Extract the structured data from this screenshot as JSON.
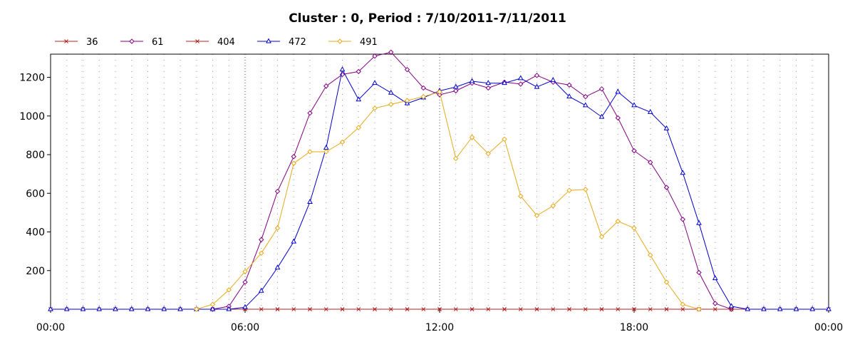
{
  "chart_data": {
    "type": "line",
    "title": "Cluster : 0, Period : 7/10/2011-7/11/2011",
    "xlabel": "",
    "ylabel": "",
    "x_tick_labels": [
      "00:00",
      "06:00",
      "12:00",
      "18:00",
      "00:00"
    ],
    "x_ticks_hours": [
      0,
      6,
      12,
      18,
      24
    ],
    "xlim_hours": [
      0,
      24
    ],
    "y_ticks": [
      200,
      400,
      600,
      800,
      1000,
      1200
    ],
    "ylim": [
      0,
      1320
    ],
    "grid": "dotted vertical lines every 30 minutes; stronger dotted lines at 6-hour marks",
    "legend_position": "top-left",
    "series": [
      {
        "name": "36",
        "color": "#b22222",
        "marker": "x",
        "x": [
          0,
          0.5,
          1,
          1.5,
          2,
          2.5,
          3,
          3.5,
          4,
          4.5,
          5,
          5.5,
          6,
          6.5,
          7,
          7.5,
          8,
          8.5,
          9,
          9.5,
          10,
          10.5,
          11,
          11.5,
          12,
          12.5,
          13,
          13.5,
          14,
          14.5,
          15,
          15.5,
          16,
          16.5,
          17,
          17.5,
          18,
          18.5,
          19,
          19.5,
          20,
          20.5,
          21,
          21.5,
          22,
          22.5,
          23,
          23.5,
          24
        ],
        "y": [
          0,
          0,
          0,
          0,
          0,
          0,
          0,
          0,
          0,
          0,
          0,
          0,
          0,
          0,
          0,
          0,
          0,
          0,
          0,
          0,
          0,
          0,
          0,
          0,
          0,
          0,
          0,
          0,
          0,
          0,
          0,
          0,
          0,
          0,
          0,
          0,
          0,
          0,
          0,
          0,
          0,
          0,
          0,
          0,
          0,
          0,
          0,
          0,
          0
        ]
      },
      {
        "name": "61",
        "color": "#800080",
        "marker": "diamond",
        "x": [
          5,
          5.5,
          6,
          6.5,
          7,
          7.5,
          8,
          8.5,
          9,
          9.5,
          10,
          10.5,
          11,
          11.5,
          12,
          12.5,
          13,
          13.5,
          14,
          14.5,
          15,
          15.5,
          16,
          16.5,
          17,
          17.5,
          18,
          18.5,
          19,
          19.5,
          20,
          20.5,
          21
        ],
        "y": [
          0,
          15,
          140,
          360,
          610,
          790,
          1015,
          1155,
          1215,
          1230,
          1310,
          1330,
          1240,
          1145,
          1110,
          1130,
          1170,
          1145,
          1175,
          1165,
          1210,
          1175,
          1160,
          1100,
          1140,
          990,
          820,
          760,
          630,
          465,
          190,
          30,
          0
        ]
      },
      {
        "name": "404",
        "color": "#b22222",
        "marker": "x",
        "x": [
          0,
          1,
          2,
          3,
          4,
          5,
          6,
          7,
          8,
          9,
          10,
          11,
          12,
          13,
          14,
          15,
          16,
          17,
          18,
          19,
          20,
          21,
          22,
          23,
          24
        ],
        "y": [
          0,
          0,
          0,
          0,
          0,
          0,
          0,
          0,
          0,
          0,
          0,
          0,
          0,
          0,
          0,
          0,
          0,
          0,
          0,
          0,
          0,
          0,
          0,
          0,
          0
        ]
      },
      {
        "name": "472",
        "color": "#0000cd",
        "marker": "triangle",
        "x": [
          0,
          0.5,
          1,
          1.5,
          2,
          2.5,
          3,
          3.5,
          4,
          4.5,
          5,
          5.5,
          6,
          6.5,
          7,
          7.5,
          8,
          8.5,
          9,
          9.5,
          10,
          10.5,
          11,
          11.5,
          12,
          12.5,
          13,
          13.5,
          14,
          14.5,
          15,
          15.5,
          16,
          16.5,
          17,
          17.5,
          18,
          18.5,
          19,
          19.5,
          20,
          20.5,
          21,
          21.5,
          22,
          22.5,
          23,
          23.5,
          24
        ],
        "y": [
          0,
          0,
          0,
          0,
          0,
          0,
          0,
          0,
          0,
          0,
          0,
          0,
          10,
          95,
          215,
          350,
          555,
          835,
          1240,
          1085,
          1170,
          1120,
          1065,
          1095,
          1130,
          1150,
          1180,
          1170,
          1170,
          1195,
          1150,
          1185,
          1100,
          1055,
          995,
          1125,
          1055,
          1020,
          935,
          705,
          445,
          160,
          15,
          0,
          0,
          0,
          0,
          0,
          0
        ]
      },
      {
        "name": "491",
        "color": "#e6a817",
        "marker": "diamond",
        "x": [
          4.5,
          5,
          5.5,
          6,
          6.5,
          7,
          7.5,
          8,
          8.5,
          9,
          9.5,
          10,
          10.5,
          11,
          11.5,
          12,
          12.5,
          13,
          13.5,
          14,
          14.5,
          15,
          15.5,
          16,
          16.5,
          17,
          17.5,
          18,
          18.5,
          19,
          19.5,
          20
        ],
        "y": [
          0,
          25,
          100,
          195,
          290,
          420,
          755,
          815,
          815,
          865,
          940,
          1040,
          1060,
          1080,
          1100,
          1125,
          780,
          890,
          805,
          880,
          585,
          485,
          535,
          615,
          620,
          375,
          455,
          420,
          280,
          140,
          25,
          0
        ]
      }
    ]
  }
}
